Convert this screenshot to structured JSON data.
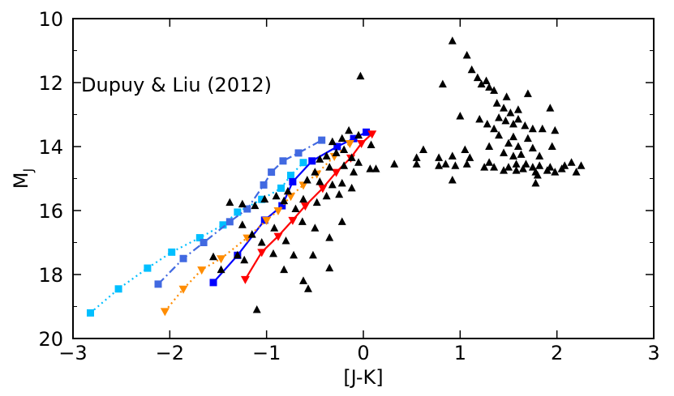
{
  "chart_data": {
    "type": "scatter",
    "annotation": "Dupuy & Liu (2012)",
    "xlabel": "[J-K]",
    "ylabel": "M",
    "ylabel_sub": "J",
    "xlim": [
      -3,
      3
    ],
    "ylim": [
      20,
      10
    ],
    "y_inverted": true,
    "grid": false,
    "legend": "none",
    "xticks": [
      {
        "v": -3,
        "label": "−3"
      },
      {
        "v": -2,
        "label": "−2"
      },
      {
        "v": -1,
        "label": "−1"
      },
      {
        "v": 0,
        "label": "0"
      },
      {
        "v": 1,
        "label": "1"
      },
      {
        "v": 2,
        "label": "2"
      },
      {
        "v": 3,
        "label": "3"
      }
    ],
    "yticks": [
      {
        "v": 10,
        "label": "10"
      },
      {
        "v": 12,
        "label": "12"
      },
      {
        "v": 14,
        "label": "14"
      },
      {
        "v": 16,
        "label": "16"
      },
      {
        "v": 18,
        "label": "18"
      },
      {
        "v": 20,
        "label": "20"
      }
    ],
    "tracks": [
      {
        "color": "#00bfff",
        "dash": "2,4",
        "marker": "square",
        "points": [
          [
            -2.82,
            19.2
          ],
          [
            -2.53,
            18.45
          ],
          [
            -2.23,
            17.8
          ],
          [
            -1.98,
            17.3
          ],
          [
            -1.69,
            16.85
          ],
          [
            -1.45,
            16.45
          ],
          [
            -1.3,
            16.05
          ],
          [
            -1.05,
            15.65
          ],
          [
            -0.85,
            15.3
          ],
          [
            -0.75,
            14.9
          ],
          [
            -0.62,
            14.5
          ]
        ]
      },
      {
        "color": "#4169e1",
        "dash": "10,4,2,4",
        "marker": "square",
        "points": [
          [
            -2.12,
            18.3
          ],
          [
            -1.86,
            17.5
          ],
          [
            -1.65,
            17.0
          ],
          [
            -1.38,
            16.35
          ],
          [
            -1.2,
            15.95
          ],
          [
            -1.03,
            15.2
          ],
          [
            -0.95,
            14.8
          ],
          [
            -0.83,
            14.45
          ],
          [
            -0.67,
            14.2
          ],
          [
            -0.43,
            13.8
          ]
        ]
      },
      {
        "color": "#0000ff",
        "dash": "",
        "marker": "square",
        "points": [
          [
            -1.55,
            18.25
          ],
          [
            -1.3,
            17.4
          ],
          [
            -1.02,
            16.3
          ],
          [
            -0.84,
            15.85
          ],
          [
            -0.73,
            15.1
          ],
          [
            -0.53,
            14.45
          ],
          [
            -0.27,
            14.0
          ],
          [
            -0.1,
            13.75
          ],
          [
            0.03,
            13.55
          ]
        ]
      },
      {
        "color": "#ff8c00",
        "dash": "2,4",
        "marker": "triangle-down",
        "points": [
          [
            -2.05,
            19.15
          ],
          [
            -1.86,
            18.45
          ],
          [
            -1.67,
            17.85
          ],
          [
            -1.47,
            17.5
          ],
          [
            -1.2,
            16.85
          ],
          [
            -1.0,
            16.3
          ],
          [
            -0.88,
            16.0
          ],
          [
            -0.75,
            15.55
          ],
          [
            -0.62,
            15.2
          ],
          [
            -0.48,
            14.85
          ],
          [
            -0.3,
            14.3
          ],
          [
            -0.14,
            13.9
          ]
        ]
      },
      {
        "color": "#ff0000",
        "dash": "",
        "marker": "triangle-down",
        "points": [
          [
            -1.22,
            18.15
          ],
          [
            -1.05,
            17.3
          ],
          [
            -0.88,
            16.8
          ],
          [
            -0.73,
            16.3
          ],
          [
            -0.6,
            15.85
          ],
          [
            -0.42,
            15.3
          ],
          [
            -0.28,
            14.8
          ],
          [
            -0.13,
            14.35
          ],
          [
            -0.02,
            13.9
          ],
          [
            0.09,
            13.6
          ]
        ]
      }
    ],
    "field_objects": [
      [
        -0.03,
        11.8
      ],
      [
        0.92,
        10.7
      ],
      [
        1.07,
        11.15
      ],
      [
        1.12,
        11.6
      ],
      [
        1.18,
        11.85
      ],
      [
        1.22,
        12.05
      ],
      [
        1.27,
        11.95
      ],
      [
        1.3,
        12.15
      ],
      [
        1.35,
        12.25
      ],
      [
        0.82,
        12.05
      ],
      [
        1.48,
        12.45
      ],
      [
        1.7,
        12.35
      ],
      [
        1.38,
        12.65
      ],
      [
        1.45,
        12.8
      ],
      [
        1.52,
        12.95
      ],
      [
        1.6,
        12.85
      ],
      [
        1.93,
        12.8
      ],
      [
        1.0,
        13.05
      ],
      [
        1.2,
        13.15
      ],
      [
        1.28,
        13.3
      ],
      [
        1.35,
        13.45
      ],
      [
        1.4,
        13.1
      ],
      [
        1.47,
        13.2
      ],
      [
        1.55,
        13.3
      ],
      [
        1.6,
        13.15
      ],
      [
        1.67,
        13.35
      ],
      [
        1.75,
        13.45
      ],
      [
        1.85,
        13.45
      ],
      [
        1.98,
        13.5
      ],
      [
        1.4,
        13.65
      ],
      [
        1.55,
        13.7
      ],
      [
        1.7,
        13.75
      ],
      [
        1.5,
        13.9
      ],
      [
        1.6,
        14.0
      ],
      [
        1.75,
        14.05
      ],
      [
        1.95,
        14.0
      ],
      [
        1.3,
        14.0
      ],
      [
        1.45,
        14.2
      ],
      [
        1.55,
        14.3
      ],
      [
        1.63,
        14.25
      ],
      [
        1.82,
        14.3
      ],
      [
        1.05,
        14.1
      ],
      [
        1.58,
        14.55
      ],
      [
        1.68,
        14.55
      ],
      [
        1.75,
        14.65
      ],
      [
        1.82,
        14.6
      ],
      [
        1.93,
        14.65
      ],
      [
        2.08,
        14.6
      ],
      [
        2.15,
        14.5
      ],
      [
        2.25,
        14.6
      ],
      [
        1.9,
        14.75
      ],
      [
        1.98,
        14.8
      ],
      [
        2.05,
        14.7
      ],
      [
        2.2,
        14.8
      ],
      [
        1.58,
        14.75
      ],
      [
        1.65,
        14.7
      ],
      [
        1.45,
        14.75
      ],
      [
        1.3,
        14.5
      ],
      [
        1.35,
        14.65
      ],
      [
        1.5,
        14.65
      ],
      [
        1.78,
        14.8
      ],
      [
        1.78,
        15.15
      ],
      [
        1.8,
        14.9
      ],
      [
        1.25,
        14.65
      ],
      [
        1.1,
        14.35
      ],
      [
        0.92,
        14.3
      ],
      [
        0.95,
        14.6
      ],
      [
        0.85,
        14.55
      ],
      [
        1.07,
        14.55
      ],
      [
        0.78,
        14.35
      ],
      [
        0.78,
        14.6
      ],
      [
        0.92,
        15.05
      ],
      [
        0.62,
        14.1
      ],
      [
        0.55,
        14.35
      ],
      [
        0.55,
        14.55
      ],
      [
        0.32,
        14.55
      ],
      [
        0.13,
        14.7
      ],
      [
        0.08,
        13.95
      ],
      [
        -0.15,
        13.5
      ],
      [
        -0.05,
        13.65
      ],
      [
        -0.22,
        13.75
      ],
      [
        -0.32,
        13.85
      ],
      [
        -0.2,
        14.1
      ],
      [
        -0.28,
        14.2
      ],
      [
        -0.38,
        14.3
      ],
      [
        -0.45,
        14.4
      ],
      [
        -0.12,
        14.35
      ],
      [
        -0.05,
        14.5
      ],
      [
        -0.2,
        14.6
      ],
      [
        -0.35,
        14.65
      ],
      [
        -0.1,
        14.8
      ],
      [
        0.07,
        14.7
      ],
      [
        -0.5,
        14.8
      ],
      [
        -0.58,
        15.05
      ],
      [
        -0.45,
        15.1
      ],
      [
        -0.32,
        15.2
      ],
      [
        -0.22,
        15.15
      ],
      [
        -0.12,
        15.3
      ],
      [
        -0.25,
        15.5
      ],
      [
        -0.38,
        15.55
      ],
      [
        -0.48,
        15.75
      ],
      [
        -0.62,
        15.65
      ],
      [
        -0.7,
        15.95
      ],
      [
        -0.78,
        15.4
      ],
      [
        -0.9,
        15.55
      ],
      [
        -0.82,
        15.7
      ],
      [
        -1.02,
        15.65
      ],
      [
        -1.12,
        15.85
      ],
      [
        -1.25,
        15.8
      ],
      [
        -1.38,
        15.75
      ],
      [
        -1.25,
        16.45
      ],
      [
        -1.15,
        16.75
      ],
      [
        -1.05,
        17.0
      ],
      [
        -0.92,
        16.55
      ],
      [
        -0.8,
        16.95
      ],
      [
        -0.63,
        16.35
      ],
      [
        -0.5,
        16.55
      ],
      [
        -0.35,
        16.85
      ],
      [
        -0.22,
        16.35
      ],
      [
        -1.47,
        17.85
      ],
      [
        -1.3,
        17.4
      ],
      [
        -1.23,
        17.55
      ],
      [
        -0.93,
        17.35
      ],
      [
        -0.82,
        17.85
      ],
      [
        -0.72,
        17.4
      ],
      [
        -0.52,
        17.4
      ],
      [
        -0.35,
        17.8
      ],
      [
        -0.62,
        18.2
      ],
      [
        -0.57,
        18.45
      ],
      [
        -1.1,
        19.1
      ],
      [
        -1.55,
        17.45
      ]
    ]
  }
}
